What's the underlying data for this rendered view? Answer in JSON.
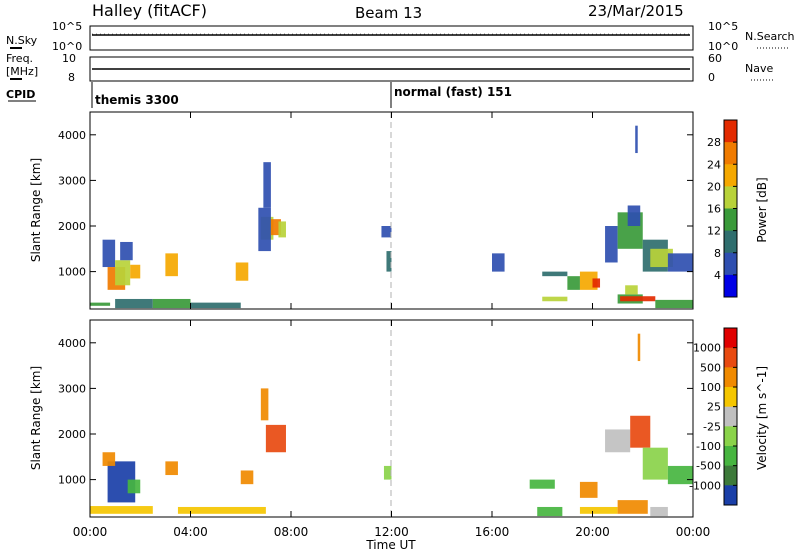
{
  "header": {
    "station": "Halley (fitACF)",
    "beam": "Beam 13",
    "date": "23/Mar/2015"
  },
  "aux_panels": {
    "nsky_label": "N.Sky",
    "nsky_ticks": [
      "10^5",
      "10^0"
    ],
    "nsearch_label": "N.Search",
    "nsearch_ticks": [
      "10^5",
      "10^0"
    ],
    "freq_label_1": "Freq.",
    "freq_label_2": "[MHz]",
    "freq_ticks": [
      "10",
      "8"
    ],
    "nave_label": "Nave",
    "nave_ticks": [
      "60",
      "0"
    ],
    "cpid_label": "CPID",
    "cpid_1": "themis 3300",
    "cpid_2": "normal (fast) 151"
  },
  "chart_data": [
    {
      "type": "heatmap",
      "name": "power-panel",
      "ylabel": "Slant Range [km]",
      "xlabel": "",
      "ylim": [
        180,
        4500
      ],
      "xlim_hours": [
        0,
        24
      ],
      "y_ticks": [
        "1000",
        "2000",
        "3000",
        "4000"
      ],
      "x_ticks": [
        "00:00",
        "04:00",
        "08:00",
        "12:00",
        "16:00",
        "20:00",
        "00:00"
      ],
      "colorbar": {
        "label": "Power [dB]",
        "ticks": [
          "28",
          "24",
          "20",
          "16",
          "12",
          "8",
          "4"
        ],
        "colors": [
          "#0000e6",
          "#2f4fb0",
          "#2f6e6e",
          "#3a9a3a",
          "#b8d23a",
          "#f5a800",
          "#f07b00",
          "#e32a00"
        ]
      },
      "patches": [
        {
          "t0": 0.0,
          "t1": 0.8,
          "r0": 250,
          "r1": 320,
          "level": 3
        },
        {
          "t0": 0.5,
          "t1": 1.0,
          "r0": 1100,
          "r1": 1700,
          "level": 1
        },
        {
          "t0": 0.7,
          "t1": 1.4,
          "r0": 600,
          "r1": 1100,
          "level": 6
        },
        {
          "t0": 1.0,
          "t1": 1.6,
          "r0": 700,
          "r1": 1250,
          "level": 4
        },
        {
          "t0": 1.2,
          "t1": 1.7,
          "r0": 1250,
          "r1": 1650,
          "level": 1
        },
        {
          "t0": 1.6,
          "t1": 2.0,
          "r0": 850,
          "r1": 1150,
          "level": 5
        },
        {
          "t0": 1.0,
          "t1": 2.5,
          "r0": 200,
          "r1": 400,
          "level": 2
        },
        {
          "t0": 3.0,
          "t1": 3.5,
          "r0": 900,
          "r1": 1400,
          "level": 5
        },
        {
          "t0": 2.5,
          "t1": 4.0,
          "r0": 200,
          "r1": 400,
          "level": 3
        },
        {
          "t0": 4.0,
          "t1": 6.0,
          "r0": 200,
          "r1": 320,
          "level": 2
        },
        {
          "t0": 5.8,
          "t1": 6.3,
          "r0": 800,
          "r1": 1200,
          "level": 5
        },
        {
          "t0": 6.8,
          "t1": 7.3,
          "r0": 1700,
          "r1": 2200,
          "level": 4
        },
        {
          "t0": 6.7,
          "t1": 7.2,
          "r0": 1450,
          "r1": 2400,
          "level": 1
        },
        {
          "t0": 7.2,
          "t1": 7.6,
          "r0": 1800,
          "r1": 2150,
          "level": 6
        },
        {
          "t0": 7.5,
          "t1": 7.8,
          "r0": 1750,
          "r1": 2100,
          "level": 4
        },
        {
          "t0": 6.9,
          "t1": 7.2,
          "r0": 2400,
          "r1": 3400,
          "level": 1
        },
        {
          "t0": 11.8,
          "t1": 12.0,
          "r0": 1000,
          "r1": 1450,
          "level": 2
        },
        {
          "t0": 11.6,
          "t1": 12.0,
          "r0": 1750,
          "r1": 2000,
          "level": 1
        },
        {
          "t0": 16.0,
          "t1": 16.5,
          "r0": 1000,
          "r1": 1400,
          "level": 1
        },
        {
          "t0": 18.0,
          "t1": 19.0,
          "r0": 900,
          "r1": 1000,
          "level": 2
        },
        {
          "t0": 18.0,
          "t1": 19.0,
          "r0": 350,
          "r1": 450,
          "level": 4
        },
        {
          "t0": 19.0,
          "t1": 19.5,
          "r0": 600,
          "r1": 900,
          "level": 3
        },
        {
          "t0": 19.5,
          "t1": 20.2,
          "r0": 600,
          "r1": 1000,
          "level": 5
        },
        {
          "t0": 20.0,
          "t1": 20.3,
          "r0": 650,
          "r1": 850,
          "level": 7
        },
        {
          "t0": 20.5,
          "t1": 21.0,
          "r0": 1200,
          "r1": 2000,
          "level": 1
        },
        {
          "t0": 21.0,
          "t1": 22.0,
          "r0": 300,
          "r1": 500,
          "level": 3
        },
        {
          "t0": 21.1,
          "t1": 22.5,
          "r0": 350,
          "r1": 460,
          "level": 7
        },
        {
          "t0": 21.3,
          "t1": 21.8,
          "r0": 500,
          "r1": 700,
          "level": 4
        },
        {
          "t0": 21.0,
          "t1": 22.0,
          "r0": 1500,
          "r1": 2300,
          "level": 3
        },
        {
          "t0": 21.4,
          "t1": 21.9,
          "r0": 2000,
          "r1": 2450,
          "level": 1
        },
        {
          "t0": 22.0,
          "t1": 23.0,
          "r0": 1000,
          "r1": 1700,
          "level": 2
        },
        {
          "t0": 22.3,
          "t1": 23.2,
          "r0": 1100,
          "r1": 1500,
          "level": 4
        },
        {
          "t0": 23.0,
          "t1": 24.0,
          "r0": 1000,
          "r1": 1400,
          "level": 1
        },
        {
          "t0": 22.5,
          "t1": 24.0,
          "r0": 200,
          "r1": 380,
          "level": 3
        },
        {
          "t0": 21.7,
          "t1": 21.8,
          "r0": 3600,
          "r1": 4200,
          "level": 1
        }
      ]
    },
    {
      "type": "heatmap",
      "name": "velocity-panel",
      "ylabel": "Slant Range [km]",
      "xlabel": "Time UT",
      "ylim": [
        180,
        4500
      ],
      "xlim_hours": [
        0,
        24
      ],
      "y_ticks": [
        "1000",
        "2000",
        "3000",
        "4000"
      ],
      "x_ticks": [
        "00:00",
        "04:00",
        "08:00",
        "12:00",
        "16:00",
        "20:00",
        "00:00"
      ],
      "colorbar": {
        "label": "Velocity [m s^-1]",
        "ticks": [
          "1000",
          "500",
          "100",
          "25",
          "-25",
          "-100",
          "-500",
          "-1000"
        ],
        "colors": [
          "#1a3fa8",
          "#3d7a3a",
          "#47b540",
          "#8ad34a",
          "#c0c0c0",
          "#f5c600",
          "#f08a00",
          "#e84a10",
          "#e00000"
        ]
      },
      "patches": [
        {
          "t0": 0.7,
          "t1": 1.8,
          "r0": 500,
          "r1": 1400,
          "level": 0
        },
        {
          "t0": 0.5,
          "t1": 1.0,
          "r0": 1300,
          "r1": 1600,
          "level": 6
        },
        {
          "t0": 1.5,
          "t1": 2.0,
          "r0": 700,
          "r1": 1000,
          "level": 2
        },
        {
          "t0": 0.0,
          "t1": 2.5,
          "r0": 250,
          "r1": 420,
          "level": 5
        },
        {
          "t0": 3.0,
          "t1": 3.5,
          "r0": 1100,
          "r1": 1400,
          "level": 6
        },
        {
          "t0": 3.5,
          "t1": 7.0,
          "r0": 250,
          "r1": 400,
          "level": 5
        },
        {
          "t0": 6.0,
          "t1": 6.5,
          "r0": 900,
          "r1": 1200,
          "level": 6
        },
        {
          "t0": 7.0,
          "t1": 7.8,
          "r0": 1600,
          "r1": 2200,
          "level": 7
        },
        {
          "t0": 6.8,
          "t1": 7.1,
          "r0": 2300,
          "r1": 3000,
          "level": 6
        },
        {
          "t0": 11.7,
          "t1": 12.0,
          "r0": 1000,
          "r1": 1300,
          "level": 3
        },
        {
          "t0": 17.5,
          "t1": 18.5,
          "r0": 800,
          "r1": 1000,
          "level": 2
        },
        {
          "t0": 17.8,
          "t1": 18.8,
          "r0": 200,
          "r1": 400,
          "level": 2
        },
        {
          "t0": 19.5,
          "t1": 20.2,
          "r0": 600,
          "r1": 950,
          "level": 6
        },
        {
          "t0": 19.5,
          "t1": 21.0,
          "r0": 250,
          "r1": 400,
          "level": 5
        },
        {
          "t0": 20.5,
          "t1": 21.5,
          "r0": 1600,
          "r1": 2100,
          "level": 4
        },
        {
          "t0": 21.0,
          "t1": 22.2,
          "r0": 250,
          "r1": 550,
          "level": 6
        },
        {
          "t0": 21.5,
          "t1": 22.3,
          "r0": 1700,
          "r1": 2400,
          "level": 7
        },
        {
          "t0": 22.0,
          "t1": 23.0,
          "r0": 1000,
          "r1": 1700,
          "level": 3
        },
        {
          "t0": 22.3,
          "t1": 23.0,
          "r0": 200,
          "r1": 400,
          "level": 4
        },
        {
          "t0": 23.0,
          "t1": 24.0,
          "r0": 900,
          "r1": 1300,
          "level": 2
        },
        {
          "t0": 21.8,
          "t1": 21.9,
          "r0": 3600,
          "r1": 4200,
          "level": 6
        }
      ]
    }
  ]
}
